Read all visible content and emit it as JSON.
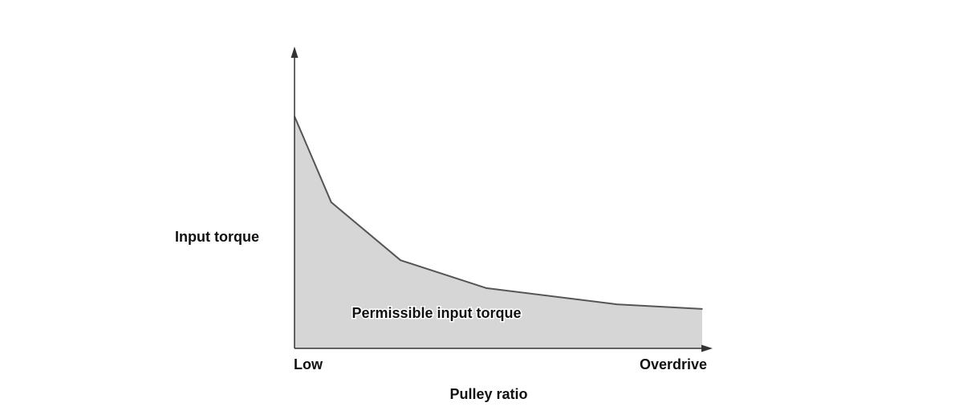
{
  "chart_data": {
    "type": "area",
    "title": "",
    "xlabel": "Pulley ratio",
    "ylabel": "Input torque",
    "x_tick_labels": [
      "Low",
      "Overdrive"
    ],
    "xlim": [
      0,
      1
    ],
    "ylim": [
      0,
      1
    ],
    "x": [
      0,
      0.09,
      0.26,
      0.47,
      0.79,
      1.0
    ],
    "series": [
      {
        "name": "Permissible input torque",
        "values": [
          1.0,
          0.63,
          0.38,
          0.26,
          0.19,
          0.17
        ]
      }
    ],
    "region_label": "Permissible input torque",
    "grid": false,
    "legend": "none",
    "fill_color": "#d6d6d6",
    "line_color": "#555555",
    "axis_color": "#333333"
  }
}
